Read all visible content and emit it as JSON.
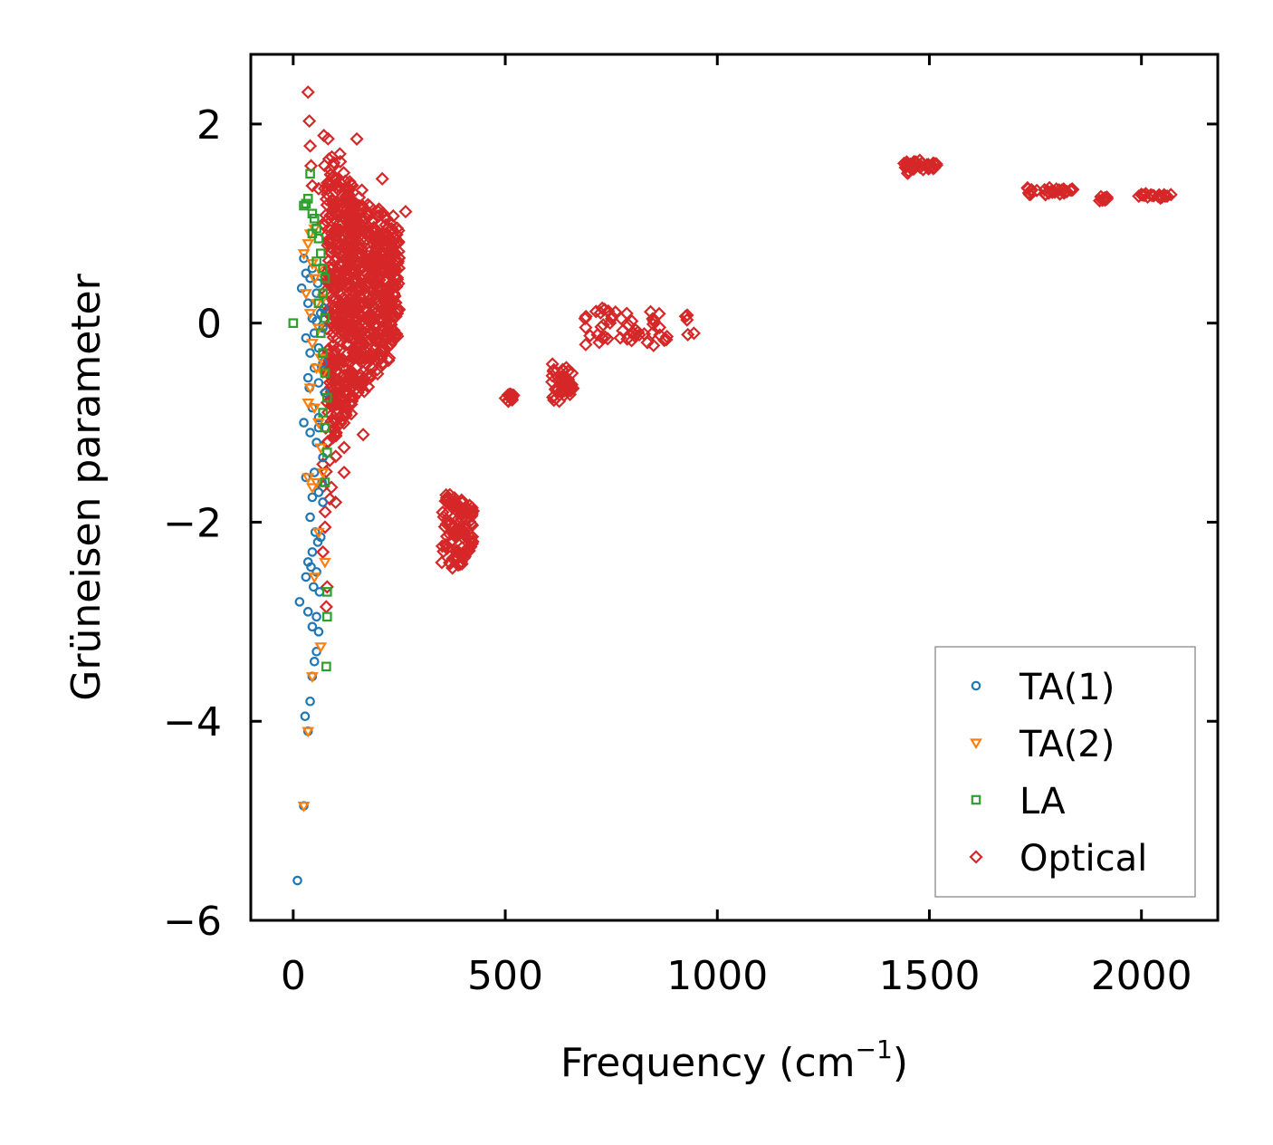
{
  "chart_data": {
    "type": "scatter",
    "xlabel_main": "Frequency (cm",
    "xlabel_sup": "−1",
    "xlabel_end": ")",
    "ylabel": "Grüneisen parameter",
    "xlim": [
      -100,
      2180
    ],
    "ylim": [
      -6.0,
      2.7
    ],
    "xticks": [
      0,
      500,
      1000,
      1500,
      2000
    ],
    "xtick_labels": [
      "0",
      "500",
      "1000",
      "1500",
      "2000"
    ],
    "yticks": [
      2,
      0,
      -2,
      -4,
      -6
    ],
    "ytick_labels": [
      "2",
      "0",
      "−2",
      "−4",
      "−6"
    ],
    "legend_position": "lower-right",
    "grid": false,
    "series": [
      {
        "name": "TA(1)",
        "marker": "circle",
        "color": "#1f77b4",
        "points": [
          [
            10,
            -5.6
          ],
          [
            25,
            -4.85
          ],
          [
            35,
            -4.1
          ],
          [
            28,
            -3.95
          ],
          [
            40,
            -3.8
          ],
          [
            45,
            -3.55
          ],
          [
            50,
            -3.4
          ],
          [
            55,
            -3.3
          ],
          [
            60,
            -3.1
          ],
          [
            45,
            -3.05
          ],
          [
            55,
            -2.95
          ],
          [
            35,
            -2.9
          ],
          [
            62,
            -2.7
          ],
          [
            15,
            -2.8
          ],
          [
            48,
            -2.65
          ],
          [
            30,
            -2.55
          ],
          [
            55,
            -2.5
          ],
          [
            35,
            -2.4
          ],
          [
            45,
            -2.3
          ],
          [
            58,
            -2.2
          ],
          [
            65,
            -2.15
          ],
          [
            52,
            -2.1
          ],
          [
            40,
            -1.95
          ],
          [
            70,
            -1.8
          ],
          [
            45,
            -1.75
          ],
          [
            60,
            -1.7
          ],
          [
            30,
            -1.55
          ],
          [
            50,
            -1.5
          ],
          [
            70,
            -1.35
          ],
          [
            55,
            -1.2
          ],
          [
            40,
            -1.1
          ],
          [
            25,
            -1.0
          ],
          [
            60,
            -0.95
          ],
          [
            45,
            -0.85
          ],
          [
            75,
            -0.7
          ],
          [
            60,
            -0.6
          ],
          [
            35,
            -0.55
          ],
          [
            50,
            -0.45
          ],
          [
            70,
            -0.4
          ],
          [
            40,
            -0.3
          ],
          [
            60,
            -0.25
          ],
          [
            30,
            -0.15
          ],
          [
            50,
            -0.1
          ],
          [
            70,
            -0.05
          ],
          [
            45,
            0.05
          ],
          [
            65,
            0.1
          ],
          [
            35,
            0.2
          ],
          [
            55,
            0.3
          ],
          [
            20,
            0.35
          ],
          [
            40,
            0.45
          ],
          [
            30,
            0.5
          ],
          [
            45,
            0.55
          ],
          [
            25,
            0.65
          ],
          [
            55,
            0.02
          ],
          [
            60,
            -1.05
          ],
          [
            68,
            -1.6
          ],
          [
            72,
            0.15
          ],
          [
            38,
            -0.65
          ],
          [
            58,
            0.4
          ],
          [
            42,
            -2.45
          ]
        ]
      },
      {
        "name": "TA(2)",
        "marker": "triangle",
        "color": "#ff7f0e",
        "points": [
          [
            25,
            -4.85
          ],
          [
            35,
            -4.1
          ],
          [
            45,
            -3.55
          ],
          [
            65,
            -3.25
          ],
          [
            75,
            -2.4
          ],
          [
            60,
            -2.1
          ],
          [
            55,
            -1.6
          ],
          [
            70,
            -1.5
          ],
          [
            35,
            -1.55
          ],
          [
            45,
            -1.65
          ],
          [
            60,
            -1.0
          ],
          [
            50,
            -0.85
          ],
          [
            40,
            -0.65
          ],
          [
            70,
            -0.5
          ],
          [
            55,
            -0.45
          ],
          [
            65,
            -0.35
          ],
          [
            45,
            -0.2
          ],
          [
            60,
            -0.05
          ],
          [
            40,
            0.1
          ],
          [
            55,
            0.2
          ],
          [
            30,
            0.3
          ],
          [
            50,
            0.45
          ],
          [
            25,
            0.7
          ],
          [
            35,
            0.8
          ],
          [
            45,
            0.6
          ],
          [
            60,
            0.55
          ],
          [
            40,
            0.9
          ],
          [
            50,
            0.95
          ],
          [
            70,
            0.25
          ],
          [
            35,
            -0.8
          ],
          [
            65,
            -1.25
          ],
          [
            50,
            -2.55
          ]
        ]
      },
      {
        "name": "LA",
        "marker": "square",
        "color": "#2ca02c",
        "points": [
          [
            0,
            0
          ],
          [
            40,
            1.5
          ],
          [
            35,
            1.25
          ],
          [
            30,
            1.2
          ],
          [
            25,
            1.18
          ],
          [
            45,
            1.1
          ],
          [
            50,
            1.05
          ],
          [
            55,
            0.95
          ],
          [
            60,
            0.85
          ],
          [
            65,
            0.7
          ],
          [
            70,
            0.55
          ],
          [
            75,
            0.45
          ],
          [
            70,
            0.3
          ],
          [
            60,
            0.2
          ],
          [
            75,
            0.05
          ],
          [
            65,
            -0.1
          ],
          [
            70,
            -0.3
          ],
          [
            75,
            -0.5
          ],
          [
            80,
            -0.75
          ],
          [
            70,
            -0.9
          ],
          [
            75,
            -1.05
          ],
          [
            80,
            -1.3
          ],
          [
            75,
            -1.6
          ],
          [
            80,
            -2.7
          ],
          [
            80,
            -2.95
          ],
          [
            78,
            -3.45
          ],
          [
            55,
            0.62
          ],
          [
            45,
            0.9
          ]
        ]
      },
      {
        "name": "Optical",
        "marker": "diamond",
        "color": "#d62728",
        "clusters": [
          {
            "x": [
              80,
              250
            ],
            "y": [
              -1.2,
              1.5
            ],
            "count": 650,
            "spread": 0.25
          },
          {
            "x": [
              70,
              160
            ],
            "y": [
              -1.9,
              1.9
            ],
            "count": 220,
            "spread": 0.35
          },
          {
            "x": [
              350,
              425
            ],
            "y": [
              -2.65,
              -1.65
            ],
            "count": 110,
            "spread": 0.08
          },
          {
            "x": [
              500,
              520
            ],
            "y": [
              -0.8,
              -0.7
            ],
            "count": 14,
            "spread": 0.04
          },
          {
            "x": [
              610,
              660
            ],
            "y": [
              -0.85,
              -0.4
            ],
            "count": 45,
            "spread": 0.08
          },
          {
            "x": [
              680,
              960
            ],
            "y": [
              -0.3,
              0.15
            ],
            "count": 55,
            "spread": 0.12
          },
          {
            "x": [
              1440,
              1520
            ],
            "y": [
              1.5,
              1.65
            ],
            "count": 35,
            "spread": 0.02
          },
          {
            "x": [
              1720,
              1840
            ],
            "y": [
              1.28,
              1.36
            ],
            "count": 32,
            "spread": 0.03
          },
          {
            "x": [
              1900,
              1920
            ],
            "y": [
              1.23,
              1.27
            ],
            "count": 10,
            "spread": 0.02
          },
          {
            "x": [
              1990,
              2070
            ],
            "y": [
              1.25,
              1.3
            ],
            "count": 20,
            "spread": 0.02
          }
        ],
        "points": [
          [
            35,
            2.32
          ],
          [
            38,
            2.03
          ],
          [
            40,
            1.78
          ],
          [
            42,
            1.58
          ],
          [
            45,
            1.38
          ],
          [
            60,
            1.35
          ],
          [
            95,
            1.15
          ],
          [
            110,
            1.7
          ],
          [
            150,
            1.85
          ],
          [
            210,
            1.45
          ],
          [
            265,
            1.12
          ],
          [
            100,
            -1.1
          ],
          [
            120,
            -1.25
          ],
          [
            90,
            -1.65
          ],
          [
            75,
            -2.05
          ],
          [
            70,
            -2.3
          ],
          [
            80,
            -2.65
          ],
          [
            78,
            -2.85
          ],
          [
            160,
            -0.65
          ],
          [
            165,
            -1.12
          ],
          [
            130,
            -0.5
          ],
          [
            170,
            -0.1
          ],
          [
            180,
            0.4
          ],
          [
            120,
            -1.5
          ],
          [
            100,
            -1.8
          ]
        ]
      }
    ]
  }
}
